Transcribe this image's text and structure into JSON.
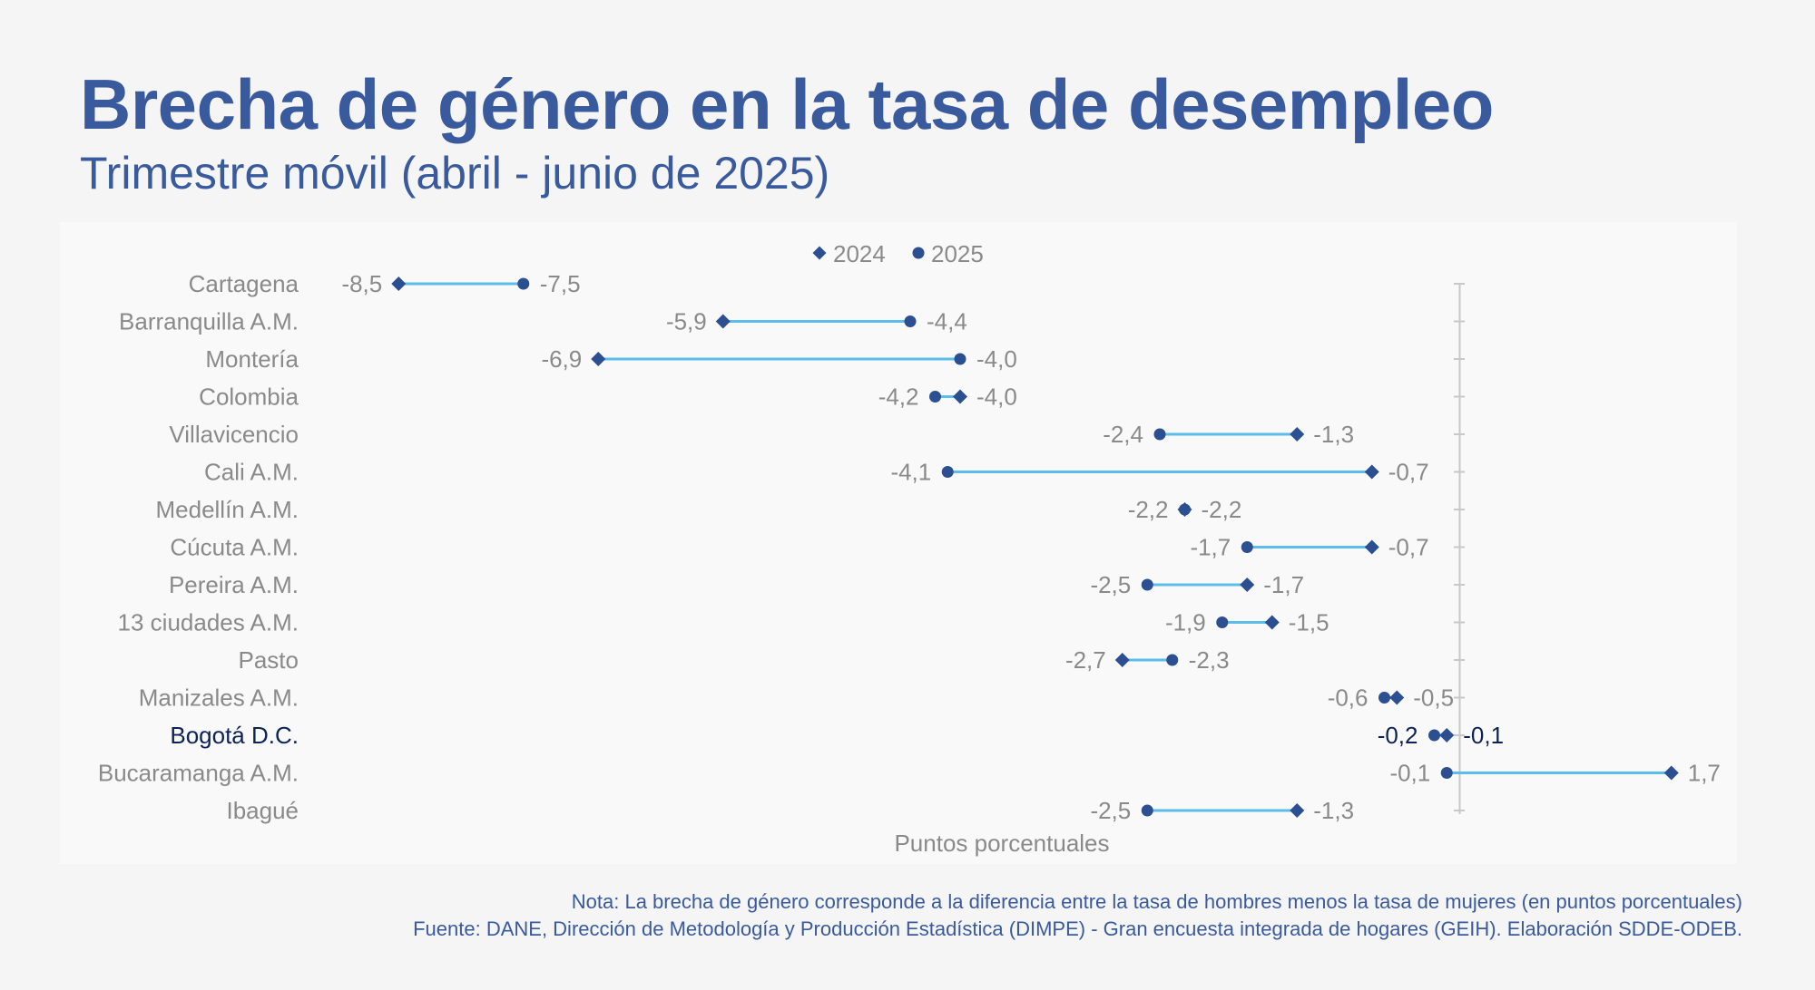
{
  "header": {
    "title": "Brecha de género en la tasa de desempleo",
    "subtitle": "Trimestre móvil (abril - junio de 2025)"
  },
  "footer": {
    "note": "Nota: La brecha de género corresponde a la diferencia entre la tasa de hombres menos la tasa de mujeres (en puntos porcentuales)",
    "source": "Fuente: DANE, Dirección de Metodología y Producción Estadística (DIMPE) - Gran encuesta integrada de hogares (GEIH). Elaboración SDDE-ODEB."
  },
  "colors": {
    "title": "#3a5a9e",
    "marker": "#2c4f91",
    "connector": "#5bbde8",
    "label": "#8a8a8a",
    "highlight": "#0d2257",
    "axis": "#c8c8c8"
  },
  "chart_data": {
    "type": "dumbbell",
    "xlabel": "Puntos porcentuales",
    "legend_position": "top-center",
    "series": [
      {
        "name": "2024",
        "marker": "diamond"
      },
      {
        "name": "2025",
        "marker": "circle"
      }
    ],
    "highlight_category": "Bogotá D.C.",
    "categories": [
      {
        "name": "Cartagena",
        "v2024": -8.5,
        "v2025": -7.5,
        "l2024": "-8,5",
        "l2025": "-7,5"
      },
      {
        "name": "Barranquilla A.M.",
        "v2024": -5.9,
        "v2025": -4.4,
        "l2024": "-5,9",
        "l2025": "-4,4"
      },
      {
        "name": "Montería",
        "v2024": -6.9,
        "v2025": -4.0,
        "l2024": "-6,9",
        "l2025": "-4,0"
      },
      {
        "name": "Colombia",
        "v2024": -4.0,
        "v2025": -4.2,
        "l2024": "-4,0",
        "l2025": "-4,2"
      },
      {
        "name": "Villavicencio",
        "v2024": -1.3,
        "v2025": -2.4,
        "l2024": "-1,3",
        "l2025": "-2,4"
      },
      {
        "name": "Cali A.M.",
        "v2024": -0.7,
        "v2025": -4.1,
        "l2024": "-0,7",
        "l2025": "-4,1"
      },
      {
        "name": "Medellín A.M.",
        "v2024": -2.2,
        "v2025": -2.2,
        "l2024": "-2,2",
        "l2025": "-2,2"
      },
      {
        "name": "Cúcuta A.M.",
        "v2024": -0.7,
        "v2025": -1.7,
        "l2024": "-0,7",
        "l2025": "-1,7"
      },
      {
        "name": "Pereira A.M.",
        "v2024": -1.7,
        "v2025": -2.5,
        "l2024": "-1,7",
        "l2025": "-2,5"
      },
      {
        "name": "13 ciudades A.M.",
        "v2024": -1.5,
        "v2025": -1.9,
        "l2024": "-1,5",
        "l2025": "-1,9"
      },
      {
        "name": "Pasto",
        "v2024": -2.7,
        "v2025": -2.3,
        "l2024": "-2,7",
        "l2025": "-2,3"
      },
      {
        "name": "Manizales A.M.",
        "v2024": -0.5,
        "v2025": -0.6,
        "l2024": "-0,5",
        "l2025": "-0,6"
      },
      {
        "name": "Bogotá D.C.",
        "v2024": -0.1,
        "v2025": -0.2,
        "l2024": "-0,1",
        "l2025": "-0,2"
      },
      {
        "name": "Bucaramanga A.M.",
        "v2024": 1.7,
        "v2025": -0.1,
        "l2024": "1,7",
        "l2025": "-0,1"
      },
      {
        "name": "Ibagué",
        "v2024": -1.3,
        "v2025": -2.5,
        "l2024": "-1,3",
        "l2025": "-2,5"
      }
    ]
  }
}
